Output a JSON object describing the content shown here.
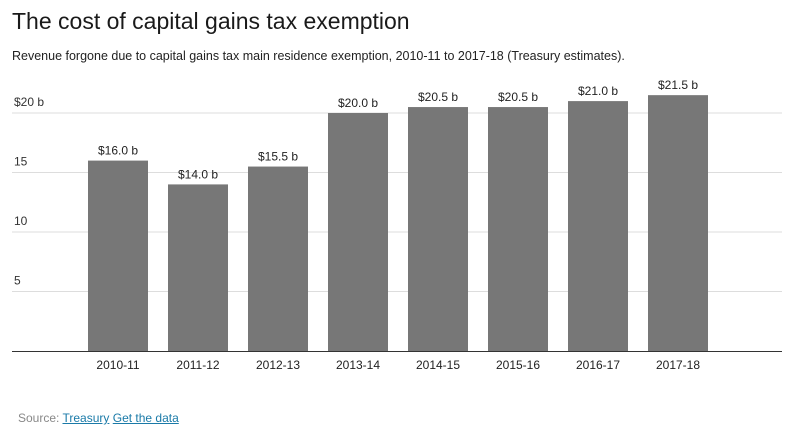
{
  "chart_data": {
    "type": "bar",
    "title": "The cost of capital gains tax exemption",
    "subtitle": "Revenue forgone due to capital gains tax main residence exemption, 2010-11 to 2017-18 (Treasury estimates).",
    "categories": [
      "2010-11",
      "2011-12",
      "2012-13",
      "2013-14",
      "2014-15",
      "2015-16",
      "2016-17",
      "2017-18"
    ],
    "values": [
      16.0,
      14.0,
      15.5,
      20.0,
      20.5,
      20.5,
      21.0,
      21.5
    ],
    "data_labels": [
      "$16.0 b",
      "$14.0 b",
      "$15.5 b",
      "$20.0 b",
      "$20.5 b",
      "$20.5 b",
      "$21.0 b",
      "$21.5 b"
    ],
    "yticks": [
      {
        "value": 5,
        "label": "5"
      },
      {
        "value": 10,
        "label": "10"
      },
      {
        "value": 15,
        "label": "15"
      },
      {
        "value": 20,
        "label": "$20 b"
      }
    ],
    "ylim": [
      0,
      22
    ],
    "grid": true,
    "xlabel": "",
    "ylabel": ""
  },
  "colors": {
    "bar": "#777777",
    "grid": "#dddddd",
    "axis": "#333333"
  },
  "source": {
    "prefix": "Source:",
    "link1": "Treasury",
    "link2": "Get the data"
  }
}
